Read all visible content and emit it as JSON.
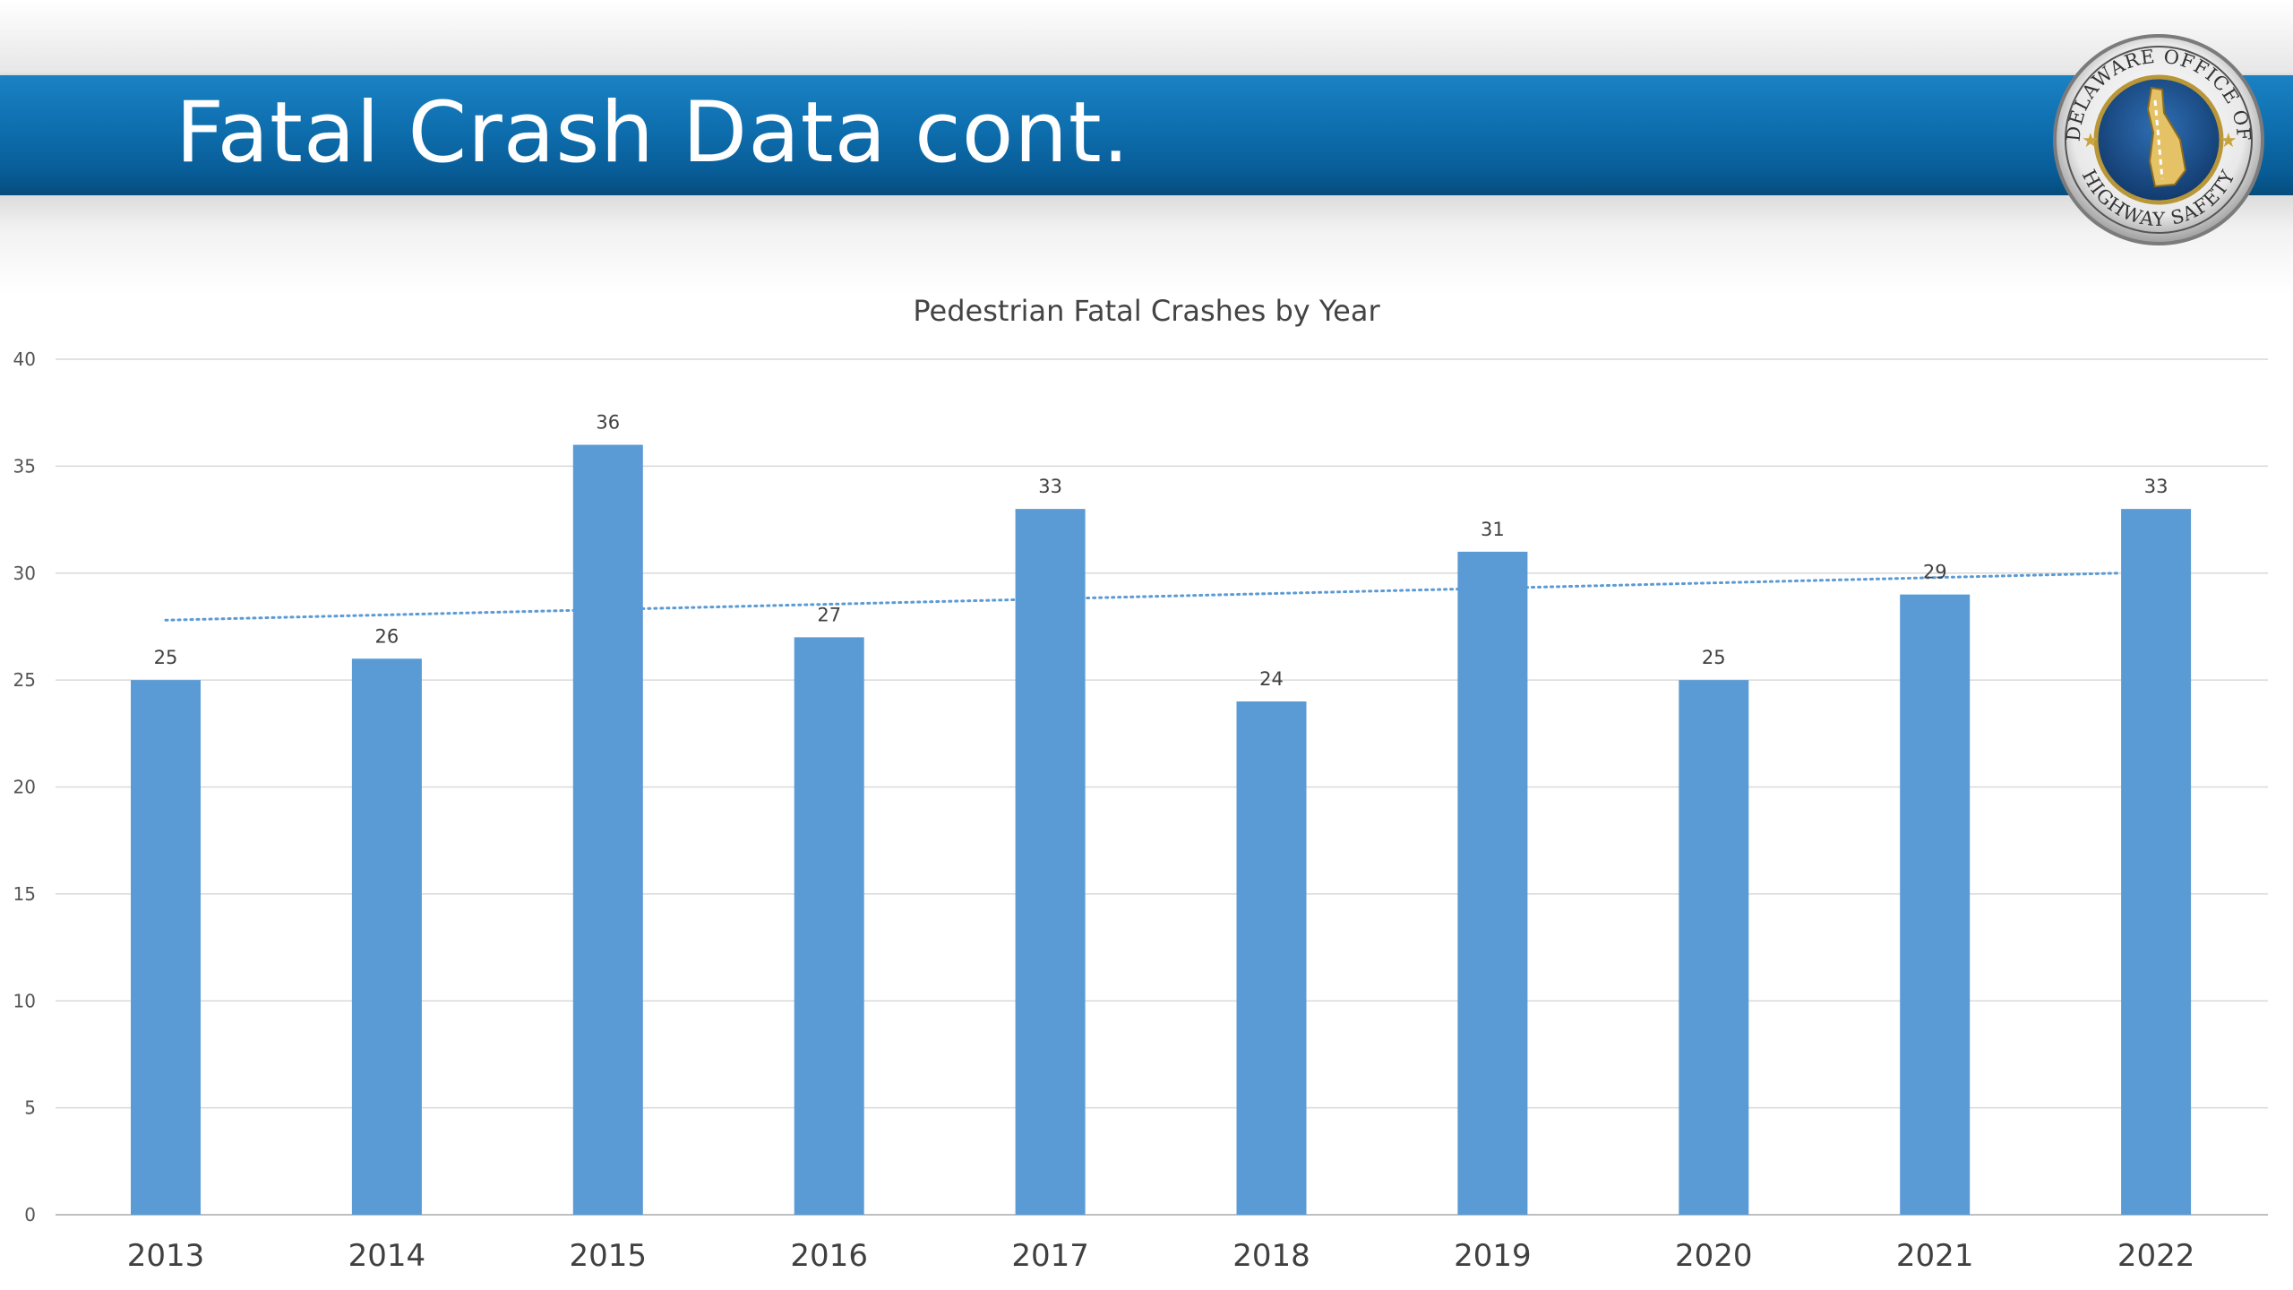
{
  "slide": {
    "title": "Fatal Crash Data cont.",
    "colors": {
      "band": "#0e6eae",
      "title_text": "#ffffff"
    }
  },
  "logo": {
    "icon": "delaware-office-of-highway-safety-seal",
    "text_top": "DELAWARE OFFICE OF",
    "text_bottom": "HIGHWAY SAFETY"
  },
  "chart_data": {
    "type": "bar",
    "title": "Pedestrian Fatal Crashes by Year",
    "xlabel": "",
    "ylabel": "",
    "categories": [
      "2013",
      "2014",
      "2015",
      "2016",
      "2017",
      "2018",
      "2019",
      "2020",
      "2021",
      "2022"
    ],
    "values": [
      25,
      26,
      36,
      27,
      33,
      24,
      31,
      25,
      29,
      33
    ],
    "ylim": [
      0,
      40
    ],
    "yticks": [
      0,
      5,
      10,
      15,
      20,
      25,
      30,
      35,
      40
    ],
    "grid": true,
    "legend": "none",
    "data_labels": true,
    "trendline": {
      "type": "linear",
      "style": "dotted",
      "start": 27.8,
      "end": 30.0
    },
    "bar_color": "#5b9bd5",
    "trendline_color": "#5b9bd5",
    "grid_color": "#d9d9d9"
  }
}
